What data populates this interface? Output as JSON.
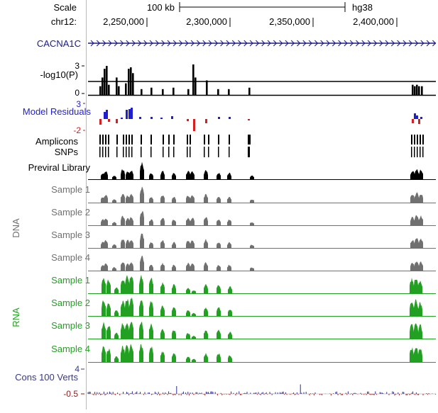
{
  "header": {
    "scale_label": "Scale",
    "scale_bar_label": "100 kb",
    "assembly": "hg38",
    "chrom_label": "chr12:",
    "positions": [
      "2,250,000",
      "2,300,000",
      "2,350,000",
      "2,400,000"
    ]
  },
  "gene": {
    "name": "CACNA1C",
    "strand": "+"
  },
  "pvalue_track": {
    "label": "-log10(P)",
    "ticks": [
      "3",
      "0"
    ],
    "threshold": 1.3
  },
  "residuals_track": {
    "label": "Model Residuals",
    "ticks": [
      "3",
      "-2"
    ]
  },
  "amplicons_label": "Amplicons",
  "snps_label": "SNPs",
  "previral_label": "Previral Library",
  "dna_group_label": "DNA",
  "dna_samples": [
    "Sample 1",
    "Sample 2",
    "Sample 3",
    "Sample 4"
  ],
  "rna_group_label": "RNA",
  "rna_samples": [
    "Sample 1",
    "Sample 2",
    "Sample 3",
    "Sample 4"
  ],
  "cons_track": {
    "label": "Cons 100 Verts",
    "ticks": [
      "4",
      "-0.5"
    ]
  },
  "colors": {
    "gene": "#1a1a8c",
    "residual_pos": "#1f1fd0",
    "residual_neg": "#d42020",
    "dna": "#707070",
    "rna": "#22a022",
    "previral": "#000000",
    "cons_label": "#3a3a80",
    "cons_neg_tick": "#8c1a1a",
    "divider": "#f0a0a0"
  }
}
